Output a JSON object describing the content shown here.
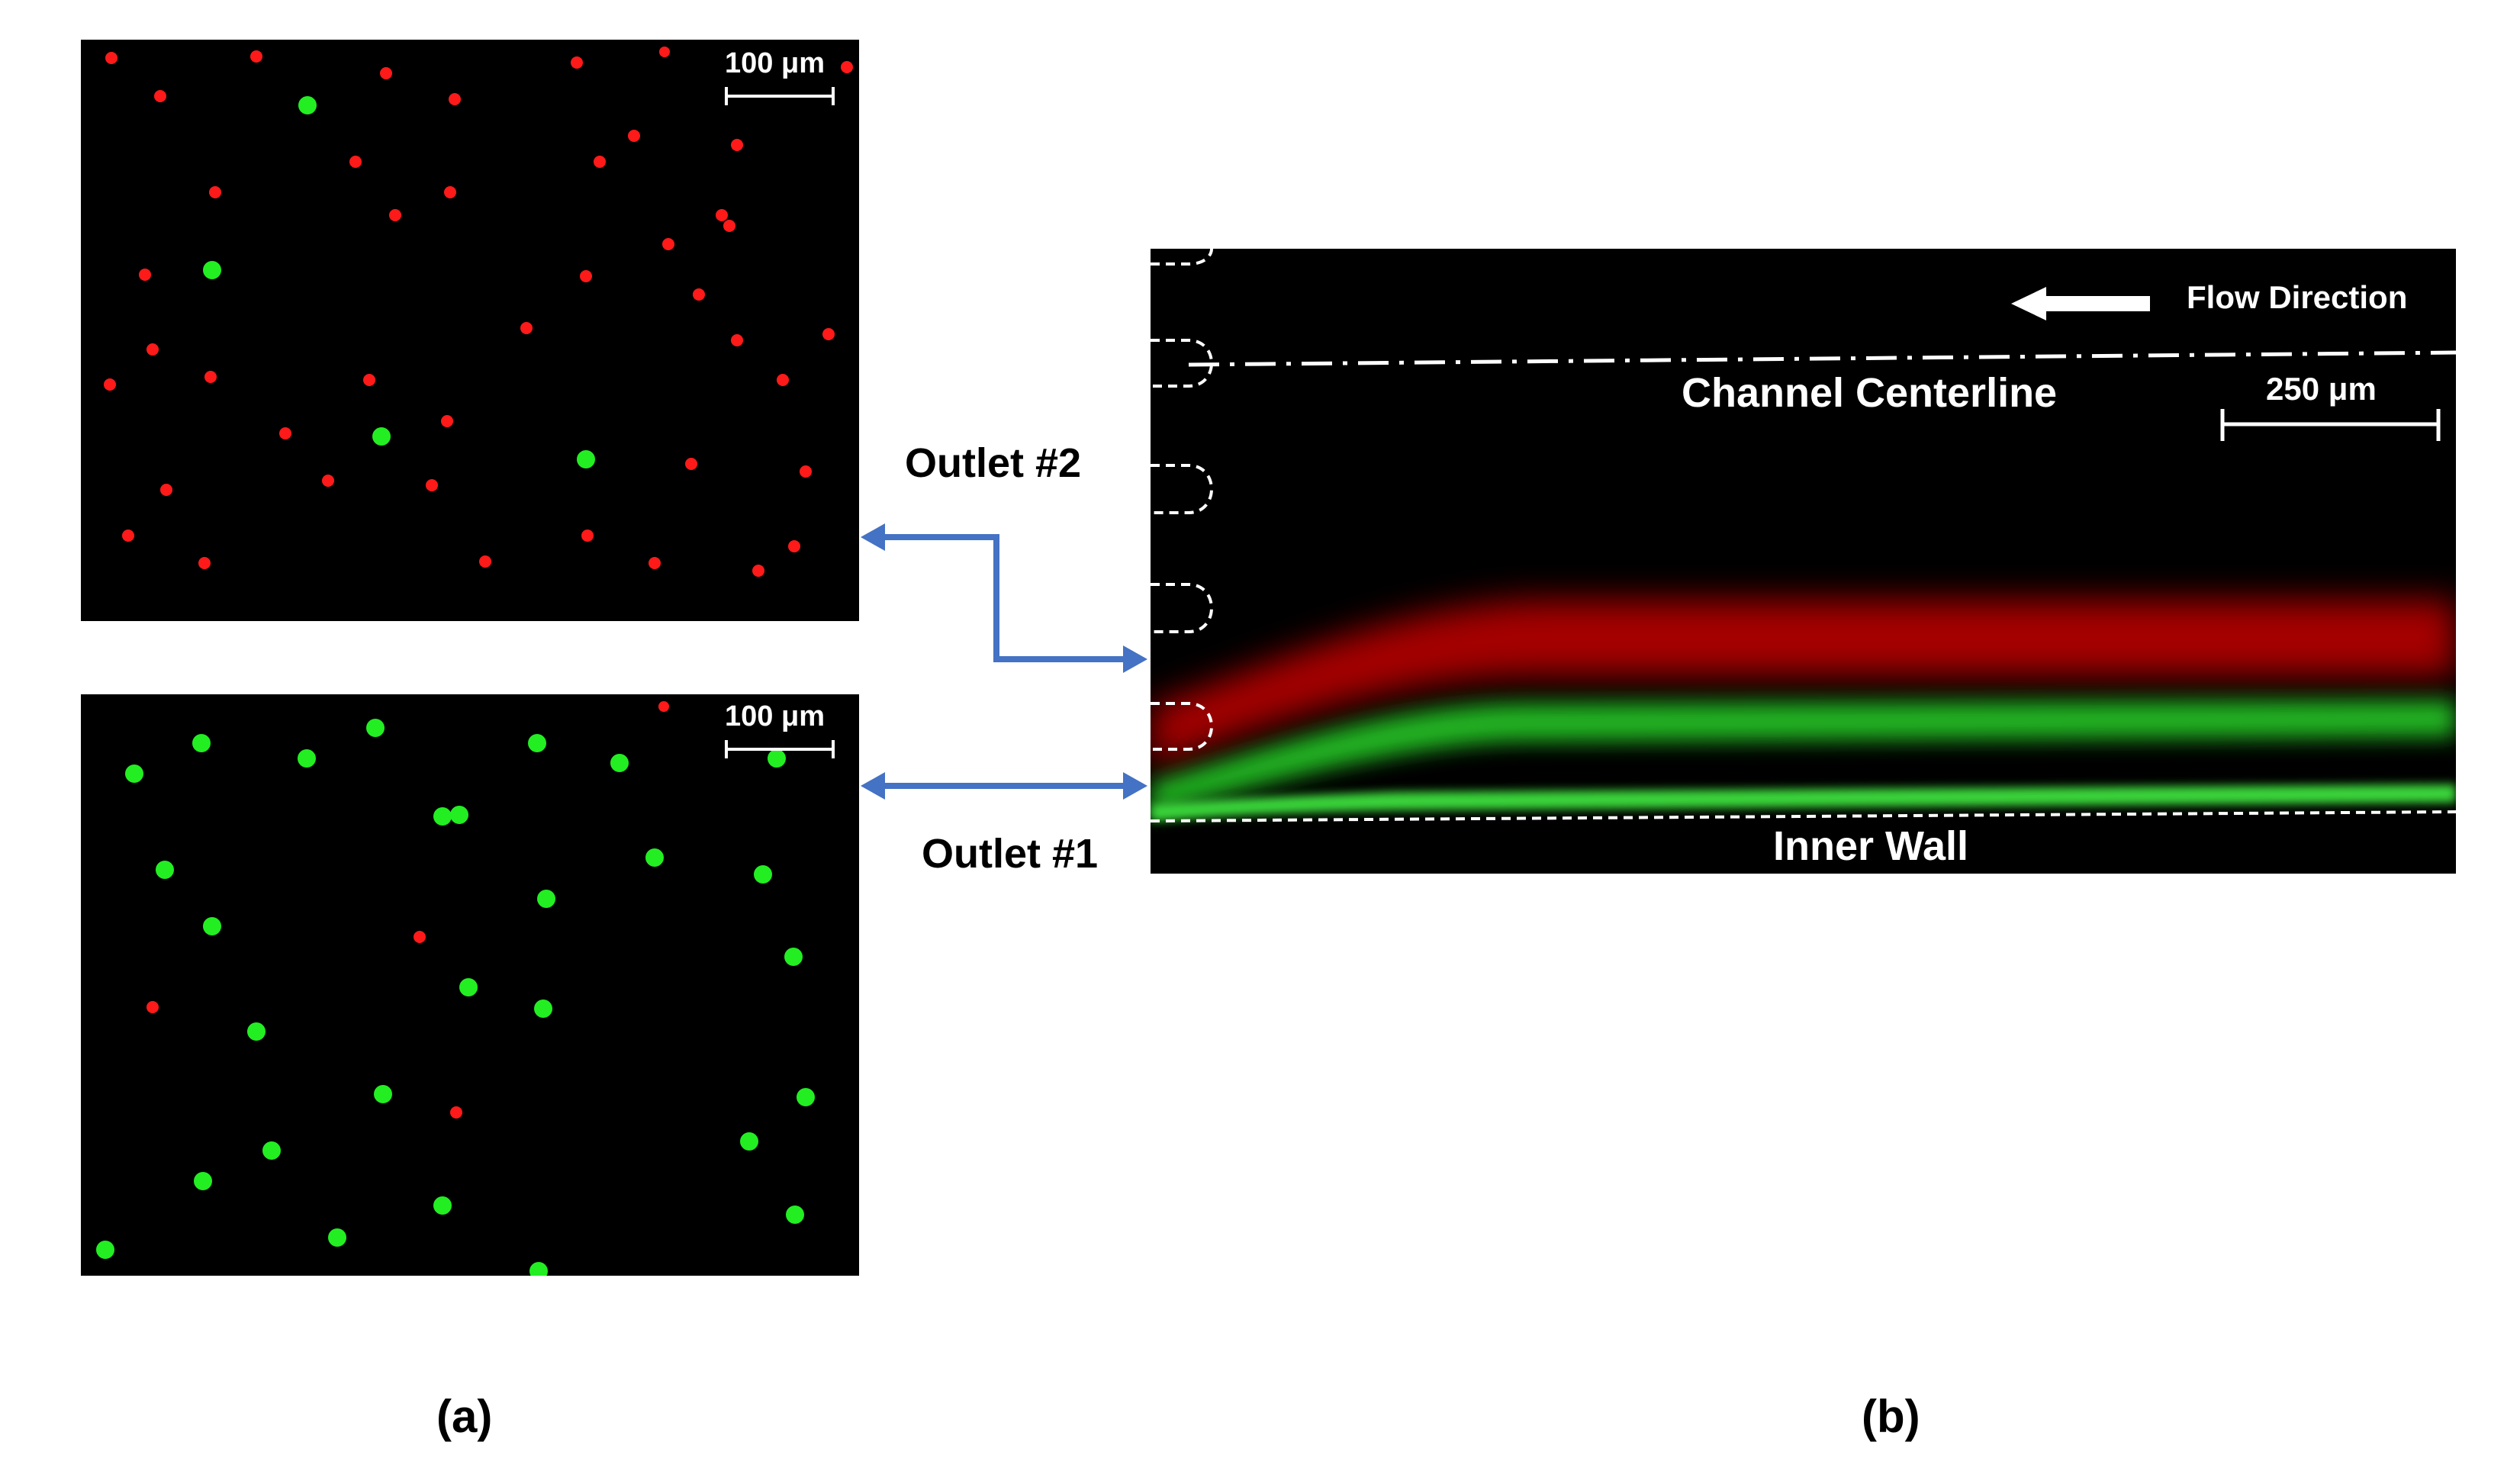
{
  "figure": {
    "panel_a": {
      "caption": "(a)",
      "top_image": {
        "scale_bar_label": "100 μm"
      },
      "bottom_image": {
        "scale_bar_label": "100 μm"
      }
    },
    "panel_b": {
      "caption": "(b)",
      "flow_direction_label": "Flow Direction",
      "centerline_label": "Channel Centerline",
      "scale_bar_label": "250 μm",
      "inner_wall_label": "Inner Wall"
    },
    "outlets": {
      "outlet_2_label": "Outlet #2",
      "outlet_1_label": "Outlet #1"
    },
    "colors": {
      "red_particle": "#ff1a1a",
      "green_particle": "#22ee22",
      "arrow_blue": "#4472c4",
      "background": "#000000"
    }
  }
}
